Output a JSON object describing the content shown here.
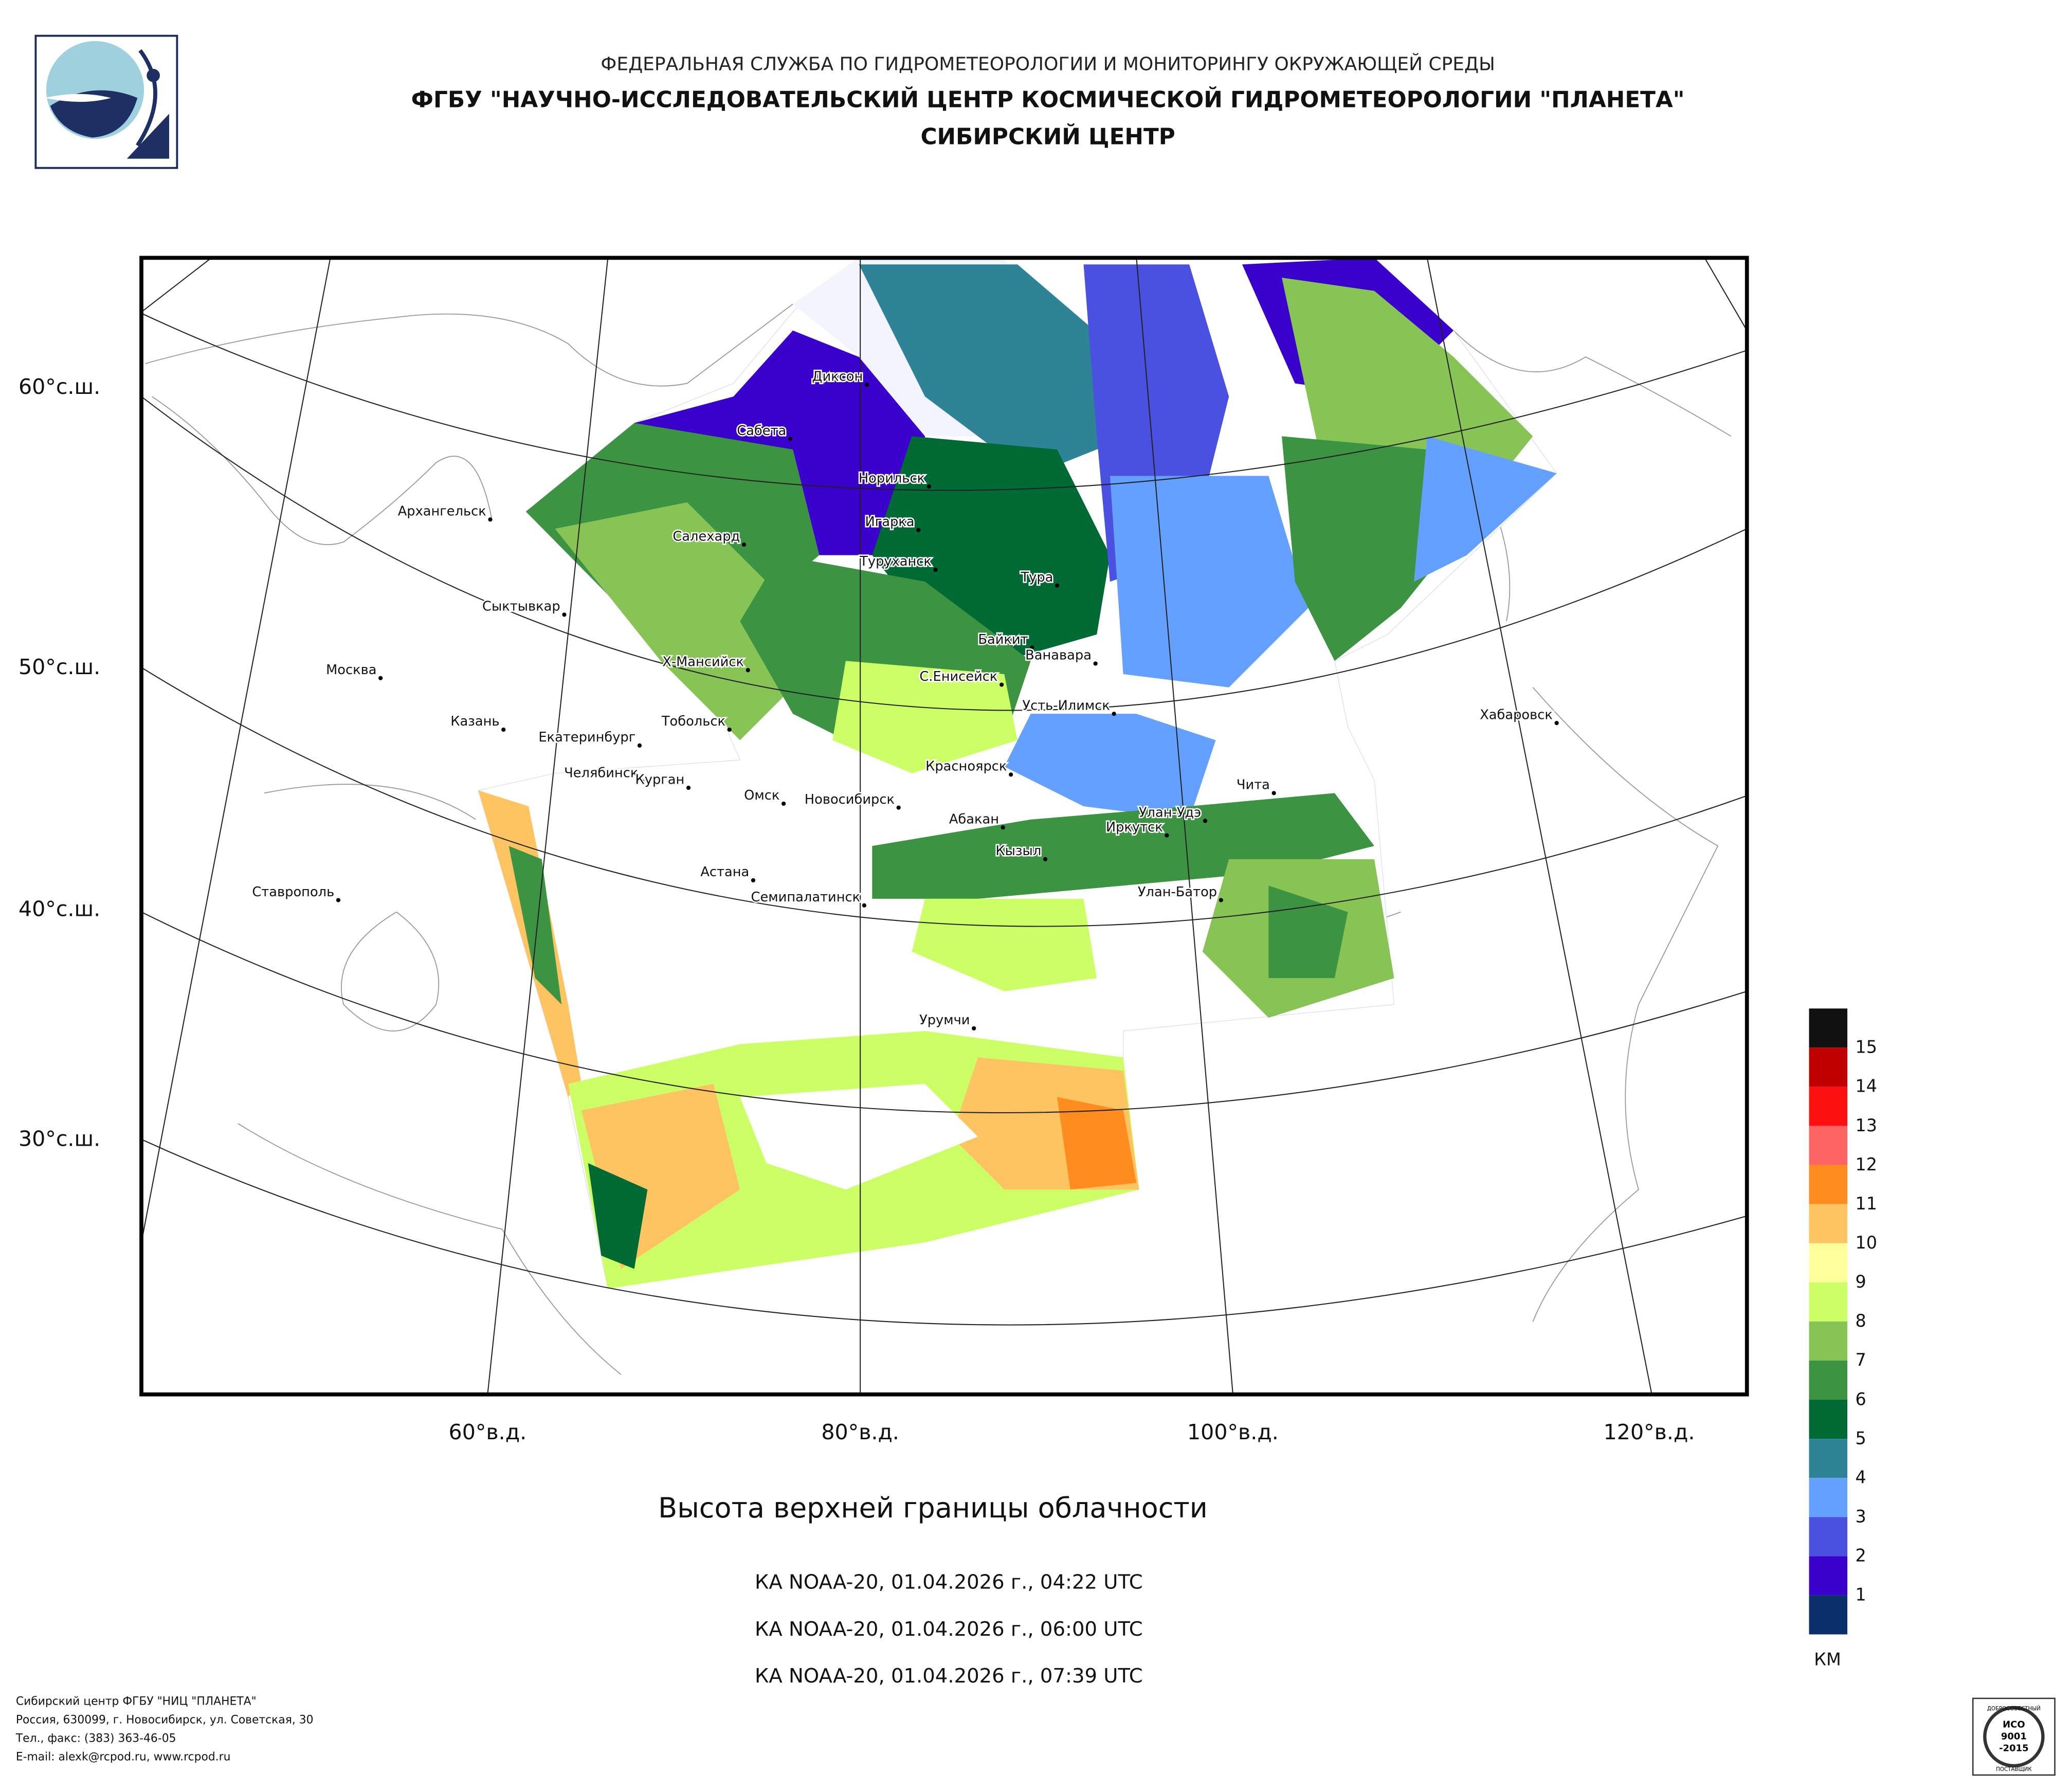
{
  "header": {
    "line1": "ФЕДЕРАЛЬНАЯ СЛУЖБА ПО ГИДРОМЕТЕОРОЛОГИИ И МОНИТОРИНГУ ОКРУЖАЮЩЕЙ СРЕДЫ",
    "line2": "ФГБУ \"НАУЧНО-ИССЛЕДОВАТЕЛЬСКИЙ ЦЕНТР КОСМИЧЕСКОЙ ГИДРОМЕТЕОРОЛОГИИ \"ПЛАНЕТА\"",
    "line3": "СИБИРСКИЙ ЦЕНТР"
  },
  "map": {
    "latitude_labels": [
      "60°с.ш.",
      "50°с.ш.",
      "40°с.ш.",
      "30°с.ш."
    ],
    "longitude_labels": [
      "60°в.д.",
      "80°в.д.",
      "100°в.д.",
      "120°в.д."
    ],
    "cities": [
      "Диксон",
      "Сабета",
      "Норильск",
      "Архангельск",
      "Игарка",
      "Салехард",
      "Туруханск",
      "Тура",
      "Сыктывкар",
      "Байкит",
      "Ванавара",
      "Х-Мансийск",
      "Москва",
      "С.Енисейск",
      "Усть-Илимск",
      "Хабаровск",
      "Казань",
      "Тобольск",
      "Екатеринбург",
      "Красноярск",
      "Челябинск",
      "Курган",
      "Чита",
      "Омск",
      "Новосибирск",
      "Улан-Удэ",
      "Абакан",
      "Иркутск",
      "Кызыл",
      "Астана",
      "Ставрополь",
      "Улан-Батор",
      "Семипалатинск",
      "Урумчи"
    ]
  },
  "legend": {
    "ticks": [
      15,
      14,
      13,
      12,
      11,
      10,
      9,
      8,
      7,
      6,
      5,
      4,
      3,
      2,
      1
    ],
    "colors": [
      "#111111",
      "#c00000",
      "#ff1010",
      "#ff6464",
      "#ff8c1e",
      "#ffc462",
      "#ffff9c",
      "#ccff66",
      "#88c455",
      "#3c9442",
      "#006a35",
      "#2e8496",
      "#64a0ff",
      "#4a50e0",
      "#3a00cc",
      "#0a2f6a"
    ],
    "unit": "КМ"
  },
  "caption": {
    "title": "Высота верхней границы облачности",
    "passes": [
      "КА NOAA-20, 01.04.2026 г., 04:22 UTC",
      "КА NOAA-20, 01.04.2026 г., 06:00 UTC",
      "КА NOAA-20, 01.04.2026 г., 07:39 UTC"
    ]
  },
  "footer": {
    "lines": [
      "Сибирский центр ФГБУ \"НИЦ \"ПЛАНЕТА\"",
      "Россия, 630099, г. Новосибирск, ул. Советская, 30",
      "Тел., факс: (383) 363-46-05",
      "E-mail: alexk@rcpod.ru, www.rcpod.ru"
    ]
  },
  "certificate": {
    "top": "ДОБРОСОВЕСТНЫЙ",
    "iso": "ИСО",
    "number": "9001",
    "year": "-2015",
    "bottom": "ПОСТАВЩИК"
  }
}
